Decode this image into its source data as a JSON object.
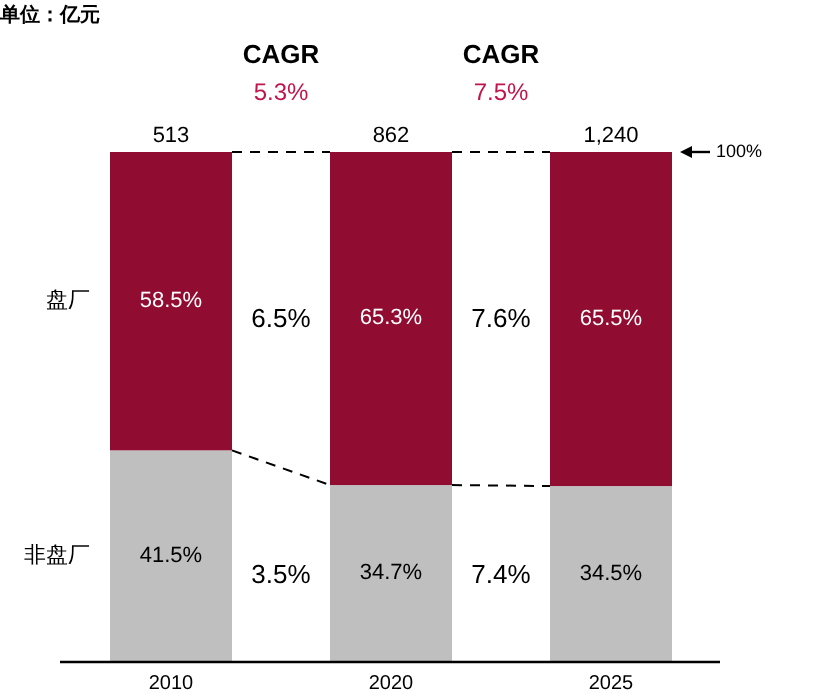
{
  "chart_data": {
    "type": "bar",
    "stacked": true,
    "categories": [
      "2010",
      "2020",
      "2025"
    ],
    "series": [
      {
        "name": "非盘厂",
        "color": "#bfbfbf",
        "values": [
          41.5,
          34.7,
          34.5
        ],
        "value_labels": [
          "41.5%",
          "34.7%",
          "34.5%"
        ]
      },
      {
        "name": "盘厂",
        "color": "#900c30",
        "values": [
          58.5,
          65.3,
          65.5
        ],
        "value_labels": [
          "58.5%",
          "65.3%",
          "65.5%"
        ]
      }
    ],
    "ylim": [
      0,
      100
    ],
    "tick_labels": "x",
    "annotations": [
      "单位：亿元",
      "CAGR",
      "5.3%",
      "CAGR",
      "7.5%",
      "6.5%",
      "3.5%",
      "7.6%",
      "7.4%",
      "100%",
      "513",
      "862",
      "1,240"
    ]
  }
}
